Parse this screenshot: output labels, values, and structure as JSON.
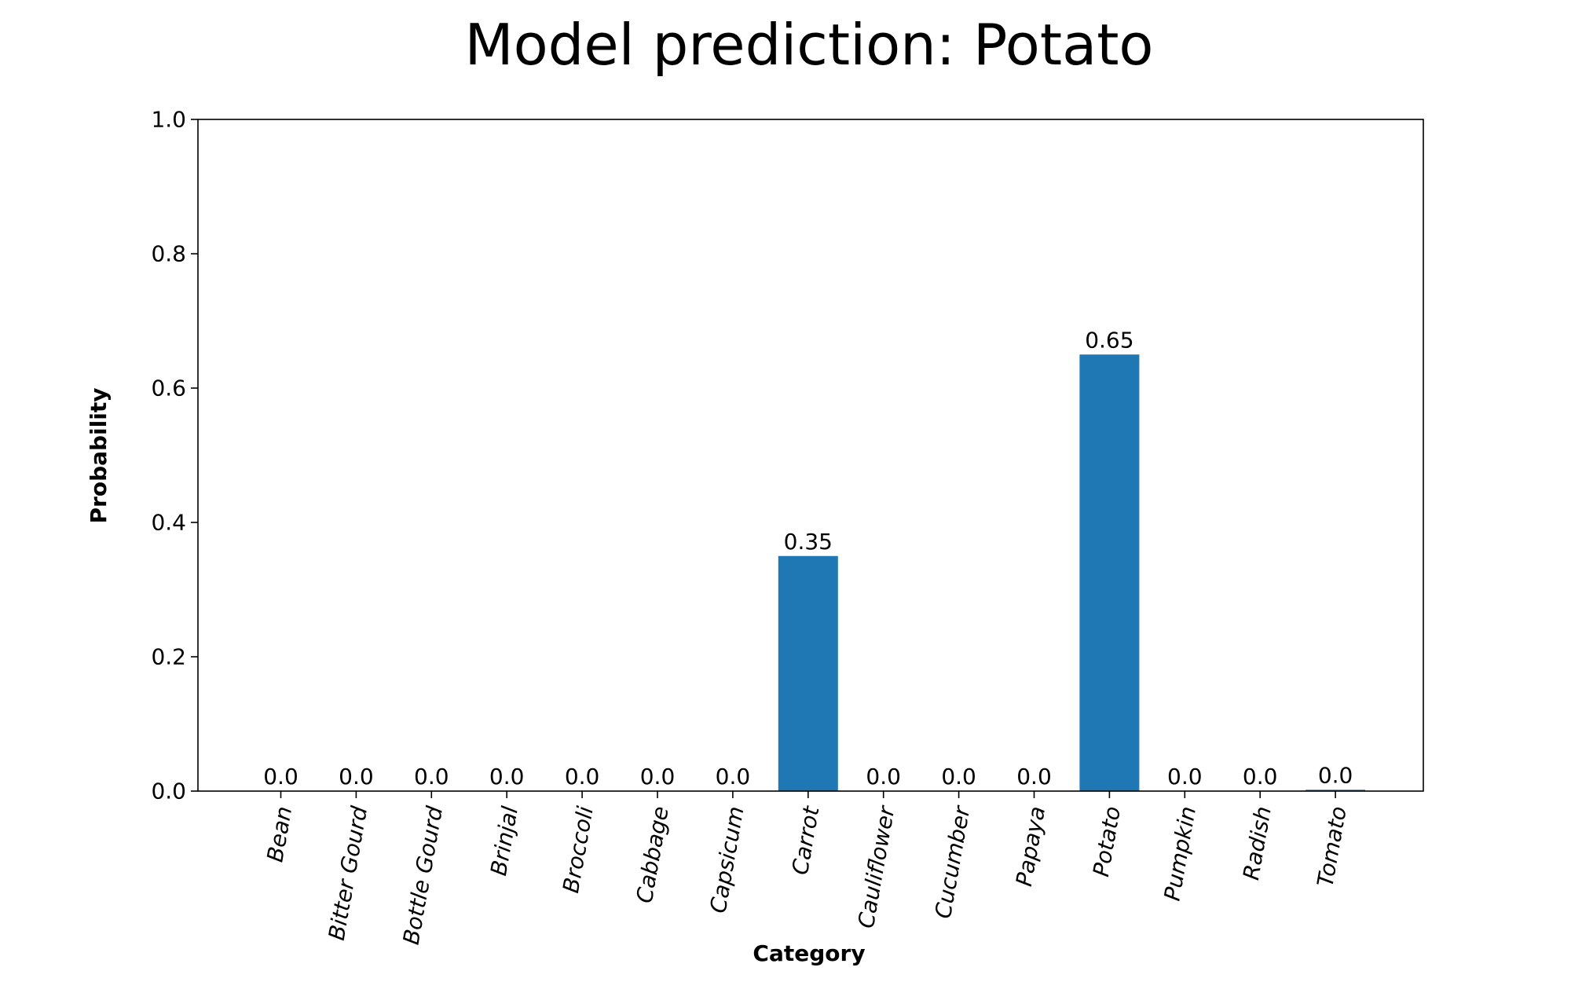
{
  "chart_data": {
    "type": "bar",
    "title": "Model prediction: Potato",
    "xlabel": "Category",
    "ylabel": "Probability",
    "ylim": [
      0,
      1.0
    ],
    "yticks": [
      0.0,
      0.2,
      0.4,
      0.6,
      0.8,
      1.0
    ],
    "ytick_labels": [
      "0.0",
      "0.2",
      "0.4",
      "0.6",
      "0.8",
      "1.0"
    ],
    "categories": [
      "Bean",
      "Bitter Gourd",
      "Bottle Gourd",
      "Brinjal",
      "Broccoli",
      "Cabbage",
      "Capsicum",
      "Carrot",
      "Cauliflower",
      "Cucumber",
      "Papaya",
      "Potato",
      "Pumpkin",
      "Radish",
      "Tomato"
    ],
    "values": [
      0.0,
      0.0,
      0.0,
      0.0,
      0.0,
      0.0,
      0.0,
      0.35,
      0.0,
      0.0,
      0.0,
      0.65,
      0.0,
      0.0,
      0.002
    ],
    "value_labels": [
      "0.0",
      "0.0",
      "0.0",
      "0.0",
      "0.0",
      "0.0",
      "0.0",
      "0.35",
      "0.0",
      "0.0",
      "0.0",
      "0.65",
      "0.0",
      "0.0",
      "0.0"
    ],
    "bar_color": "#1f77b4",
    "grid": false,
    "legend": "none"
  }
}
